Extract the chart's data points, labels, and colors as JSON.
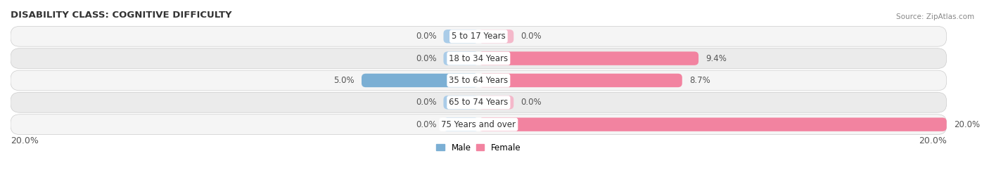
{
  "title": "DISABILITY CLASS: COGNITIVE DIFFICULTY",
  "source": "Source: ZipAtlas.com",
  "categories": [
    "5 to 17 Years",
    "18 to 34 Years",
    "35 to 64 Years",
    "65 to 74 Years",
    "75 Years and over"
  ],
  "male_values": [
    0.0,
    0.0,
    5.0,
    0.0,
    0.0
  ],
  "female_values": [
    0.0,
    9.4,
    8.7,
    0.0,
    20.0
  ],
  "male_color": "#7bafd4",
  "female_color": "#f283a0",
  "male_stub_color": "#aacce8",
  "female_stub_color": "#f4b8ca",
  "row_bg_color": "#ebebeb",
  "row_alt_bg_color": "#f5f5f5",
  "max_val": 20.0,
  "stub_val": 1.5,
  "title_fontsize": 9.5,
  "label_fontsize": 8.5,
  "tick_fontsize": 9,
  "bar_height": 0.62,
  "x_left_label": "20.0%",
  "x_right_label": "20.0%"
}
